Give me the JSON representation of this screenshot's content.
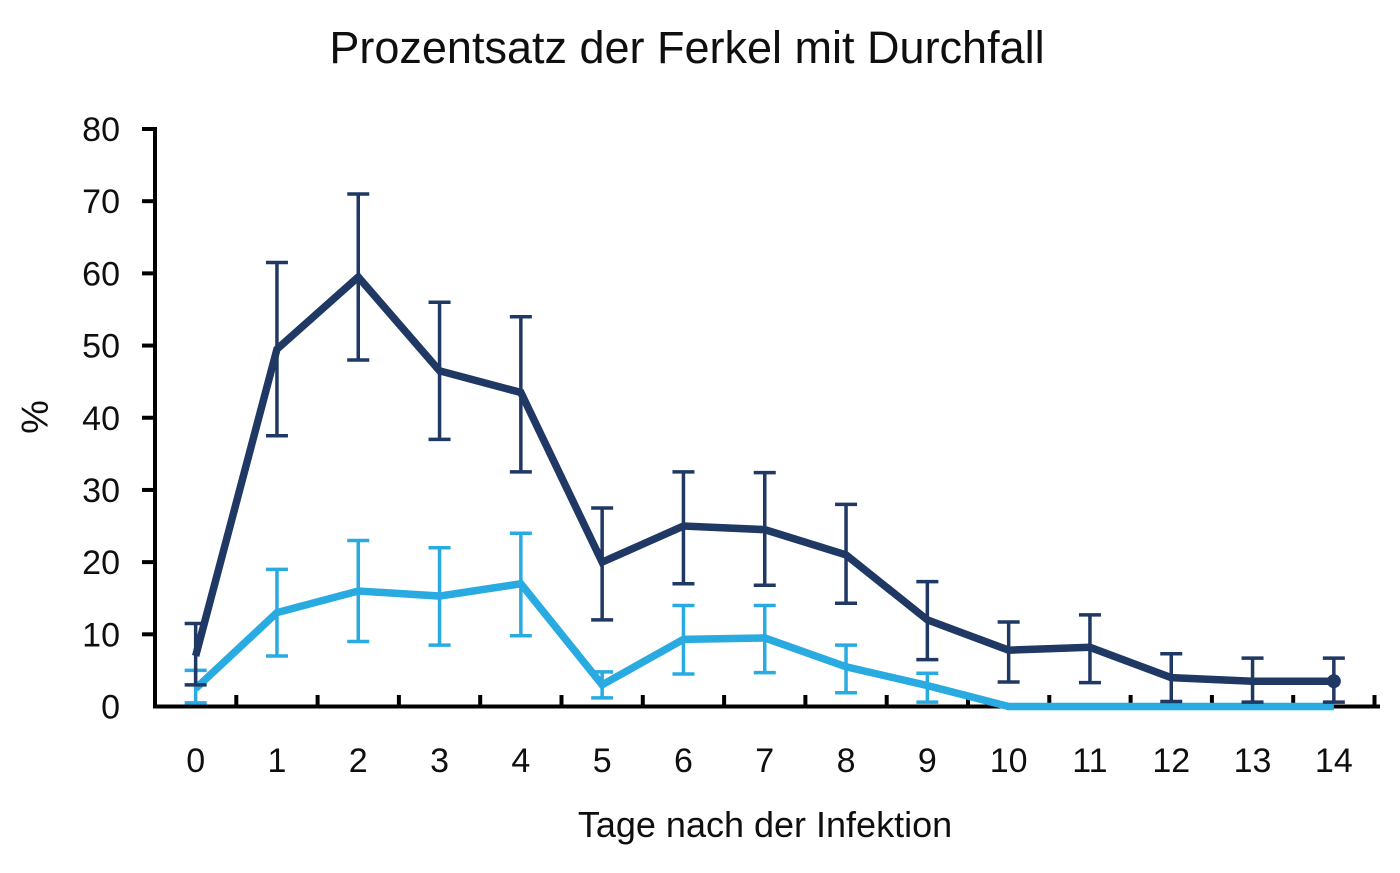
{
  "chart_data": {
    "type": "line",
    "title": "Prozentsatz der Ferkel mit Durchfall",
    "xlabel": "Tage nach der Infektion",
    "ylabel": "%",
    "x": [
      0,
      1,
      2,
      3,
      4,
      5,
      6,
      7,
      8,
      9,
      10,
      11,
      12,
      13,
      14
    ],
    "x_tick_labels": [
      "0",
      "1",
      "2",
      "3",
      "4",
      "5",
      "6",
      "7",
      "8",
      "9",
      "10",
      "11",
      "12",
      "13",
      "14"
    ],
    "y_ticks": [
      0,
      10,
      20,
      30,
      40,
      50,
      60,
      70,
      80
    ],
    "ylim": [
      0,
      80
    ],
    "grid": false,
    "legend": "none",
    "axis_color": "#000000",
    "error_bars": true,
    "series": [
      {
        "name": "dark-blue-series",
        "color": "#1f3864",
        "values": [
          7,
          49.5,
          59.5,
          46.5,
          43.5,
          20,
          25,
          24.5,
          21,
          12,
          7.8,
          8.2,
          4,
          3.5,
          3.5
        ],
        "err_low": [
          3,
          37.5,
          48,
          37,
          32.5,
          12,
          17,
          16.8,
          14.3,
          6.5,
          3.4,
          3.3,
          0.7,
          0.6,
          0.6
        ],
        "err_high": [
          11.5,
          61.5,
          71,
          56,
          54,
          27.5,
          32.5,
          32.4,
          28,
          17.3,
          11.7,
          12.7,
          7.3,
          6.7,
          6.7
        ],
        "end_marker": true
      },
      {
        "name": "light-blue-series",
        "color": "#29abe2",
        "values": [
          2.5,
          13,
          16,
          15.3,
          17,
          3,
          9.3,
          9.5,
          5.5,
          2.9,
          0,
          0,
          0,
          0,
          0
        ],
        "err_low": [
          0.5,
          7,
          9,
          8.5,
          9.8,
          1.2,
          4.5,
          4.7,
          1.9,
          0.6,
          null,
          null,
          null,
          null,
          null
        ],
        "err_high": [
          5,
          19,
          23,
          22,
          24,
          4.8,
          14,
          14,
          8.5,
          4.6,
          null,
          null,
          null,
          null,
          null
        ],
        "end_marker": false
      }
    ]
  }
}
